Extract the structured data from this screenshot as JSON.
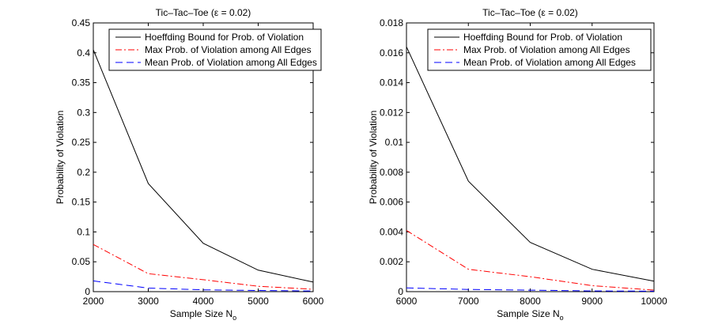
{
  "chart_data": [
    {
      "type": "line",
      "title": "Tic–Tac–Toe (ε = 0.02)",
      "xlabel": "Sample Size N",
      "xlabel_subscript": "o",
      "ylabel": "Probability of Violation",
      "xlim": [
        2000,
        6000
      ],
      "ylim": [
        0,
        0.45
      ],
      "xticks": [
        2000,
        3000,
        4000,
        5000,
        6000
      ],
      "xtick_labels": [
        "2000",
        "3000",
        "4000",
        "5000",
        "6000"
      ],
      "yticks": [
        0,
        0.05,
        0.1,
        0.15,
        0.2,
        0.25,
        0.3,
        0.35,
        0.4,
        0.45
      ],
      "ytick_labels": [
        "0",
        "0.05",
        "0.1",
        "0.15",
        "0.2",
        "0.25",
        "0.3",
        "0.35",
        "0.4",
        "0.45"
      ],
      "x": [
        2000,
        3000,
        4000,
        5000,
        6000
      ],
      "series": [
        {
          "name": "Hoeffding Bound for Prob. of Violation",
          "values": [
            0.405,
            0.181,
            0.081,
            0.036,
            0.016
          ],
          "color": "#000000",
          "dash": "solid"
        },
        {
          "name": "Max Prob. of Violation among All Edges",
          "values": [
            0.079,
            0.03,
            0.02,
            0.009,
            0.004
          ],
          "color": "#ff0000",
          "dash": "dashdot"
        },
        {
          "name": "Mean Prob. of Violation among All Edges",
          "values": [
            0.018,
            0.006,
            0.003,
            0.002,
            0.001
          ],
          "color": "#0000ff",
          "dash": "dashed"
        }
      ],
      "legend": "top-right"
    },
    {
      "type": "line",
      "title": "Tic–Tac–Toe (ε = 0.02)",
      "xlabel": "Sample Size N",
      "xlabel_subscript": "o",
      "ylabel": "Probability of Violation",
      "xlim": [
        6000,
        10000
      ],
      "ylim": [
        0,
        0.018
      ],
      "xticks": [
        6000,
        7000,
        8000,
        9000,
        10000
      ],
      "xtick_labels": [
        "6000",
        "7000",
        "8000",
        "9000",
        "10000"
      ],
      "yticks": [
        0,
        0.002,
        0.004,
        0.006,
        0.008,
        0.01,
        0.012,
        0.014,
        0.016,
        0.018
      ],
      "ytick_labels": [
        "0",
        "0.002",
        "0.004",
        "0.006",
        "0.008",
        "0.01",
        "0.012",
        "0.014",
        "0.016",
        "0.018"
      ],
      "x": [
        6000,
        7000,
        8000,
        9000,
        10000
      ],
      "series": [
        {
          "name": "Hoeffding Bound for Prob. of Violation",
          "values": [
            0.0164,
            0.0074,
            0.0033,
            0.0015,
            0.0007
          ],
          "color": "#000000",
          "dash": "solid"
        },
        {
          "name": "Max Prob. of Violation among All Edges",
          "values": [
            0.0041,
            0.0015,
            0.001,
            0.0004,
            0.0001
          ],
          "color": "#ff0000",
          "dash": "dashdot"
        },
        {
          "name": "Mean Prob. of Violation among All Edges",
          "values": [
            0.00025,
            0.00015,
            0.0001,
            5e-05,
            3e-05
          ],
          "color": "#0000ff",
          "dash": "dashed"
        }
      ],
      "legend": "top-right"
    }
  ]
}
